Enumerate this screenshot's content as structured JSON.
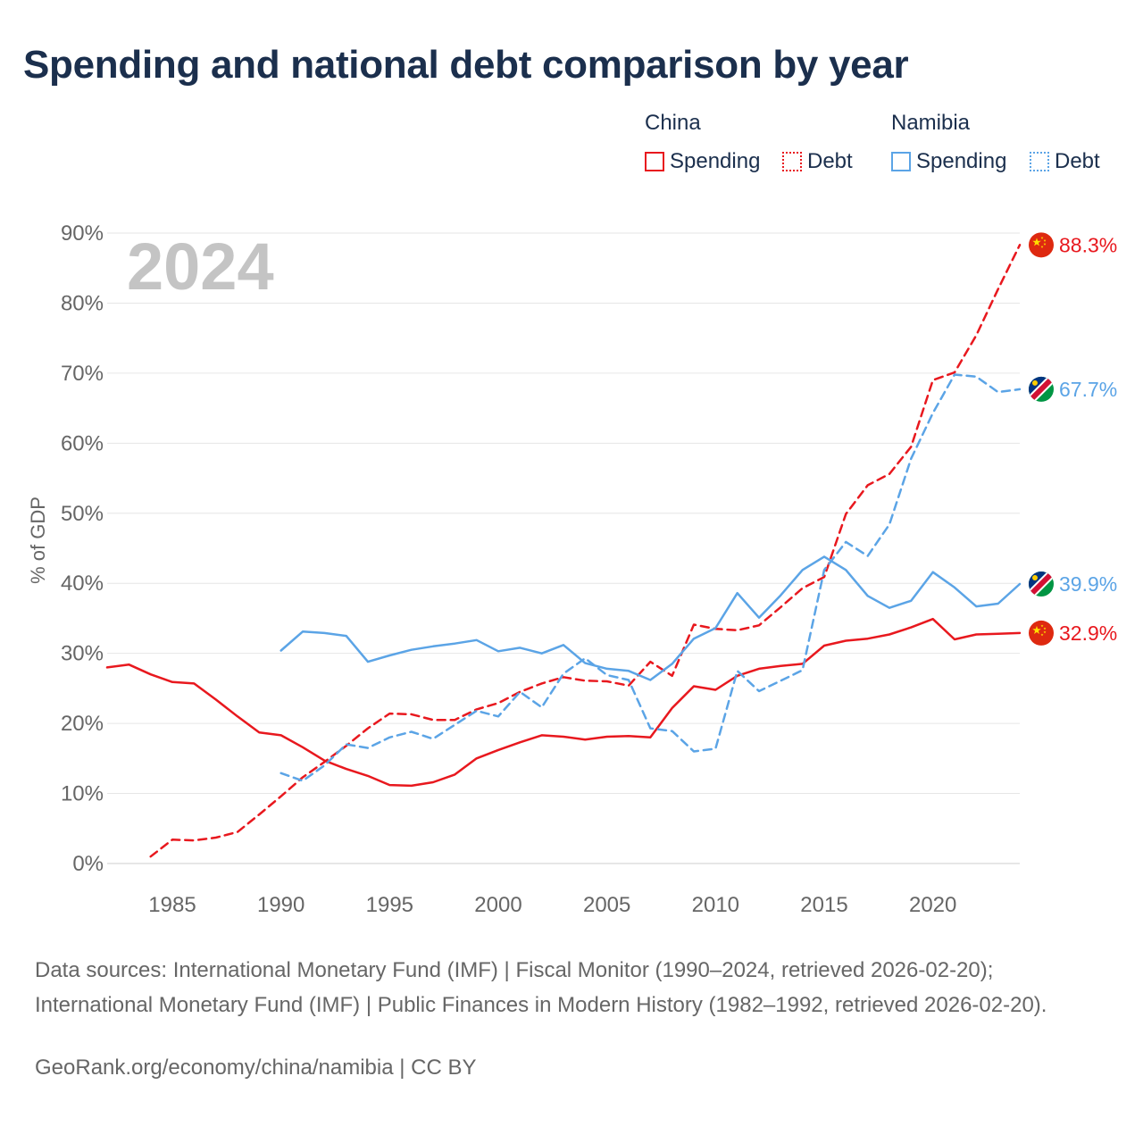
{
  "title": "Spending and national debt comparison by year",
  "legend": {
    "groups": [
      {
        "country": "China",
        "items": [
          {
            "label": "Spending",
            "color": "#e8181e",
            "style": "solid"
          },
          {
            "label": "Debt",
            "color": "#e8181e",
            "style": "dotted"
          }
        ]
      },
      {
        "country": "Namibia",
        "items": [
          {
            "label": "Spending",
            "color": "#5ba4e6",
            "style": "solid"
          },
          {
            "label": "Debt",
            "color": "#5ba4e6",
            "style": "dotted"
          }
        ]
      }
    ]
  },
  "footer": {
    "sources": "Data sources: International Monetary Fund (IMF) | Fiscal Monitor (1990–2024, retrieved 2026-02-20); International Monetary Fund (IMF) | Public Finances in Modern History (1982–1992, retrieved 2026-02-20).",
    "credit": "GeoRank.org/economy/china/namibia | CC BY"
  },
  "chart_data": {
    "type": "line",
    "year_label": "2024",
    "ylabel": "% of GDP",
    "ylim": [
      0,
      90
    ],
    "xlim": [
      1982,
      2024
    ],
    "y_ticks": [
      0,
      10,
      20,
      30,
      40,
      50,
      60,
      70,
      80,
      90
    ],
    "y_tick_labels": [
      "0%",
      "10%",
      "20%",
      "30%",
      "40%",
      "50%",
      "60%",
      "70%",
      "80%",
      "90%"
    ],
    "x_ticks": [
      1985,
      1990,
      1995,
      2000,
      2005,
      2010,
      2015,
      2020
    ],
    "x_tick_labels": [
      "1985",
      "1990",
      "1995",
      "2000",
      "2005",
      "2010",
      "2015",
      "2020"
    ],
    "series": [
      {
        "name": "China Spending",
        "country": "China",
        "measure": "Spending",
        "color": "#e8181e",
        "dash": "solid",
        "end_label": "32.9%",
        "flag": "china",
        "x": [
          1982,
          1983,
          1984,
          1985,
          1986,
          1987,
          1988,
          1989,
          1990,
          1991,
          1992,
          1993,
          1994,
          1995,
          1996,
          1997,
          1998,
          1999,
          2000,
          2001,
          2002,
          2003,
          2004,
          2005,
          2006,
          2007,
          2008,
          2009,
          2010,
          2011,
          2012,
          2013,
          2014,
          2015,
          2016,
          2017,
          2018,
          2019,
          2020,
          2021,
          2022,
          2023,
          2024
        ],
        "values": [
          28.0,
          28.4,
          27.0,
          25.9,
          25.7,
          23.4,
          21.0,
          18.7,
          18.3,
          16.6,
          14.7,
          13.5,
          12.5,
          11.2,
          11.1,
          11.6,
          12.7,
          15.0,
          16.2,
          17.3,
          18.3,
          18.1,
          17.7,
          18.1,
          18.2,
          18.0,
          22.2,
          25.3,
          24.8,
          26.8,
          27.8,
          28.2,
          28.5,
          31.1,
          31.8,
          32.1,
          32.7,
          33.7,
          34.9,
          32.0,
          32.7,
          32.8,
          32.9
        ]
      },
      {
        "name": "China Debt",
        "country": "China",
        "measure": "Debt",
        "color": "#e8181e",
        "dash": "dashed",
        "end_label": "88.3%",
        "flag": "china",
        "x": [
          1984,
          1985,
          1986,
          1987,
          1988,
          1989,
          1990,
          1991,
          1992,
          1993,
          1994,
          1995,
          1996,
          1997,
          1998,
          1999,
          2000,
          2001,
          2002,
          2003,
          2004,
          2005,
          2006,
          2007,
          2008,
          2009,
          2010,
          2011,
          2012,
          2013,
          2014,
          2015,
          2016,
          2017,
          2018,
          2019,
          2020,
          2021,
          2022,
          2023,
          2024
        ],
        "values": [
          1.0,
          3.4,
          3.3,
          3.7,
          4.5,
          7.0,
          9.6,
          12.3,
          14.5,
          16.8,
          19.3,
          21.4,
          21.3,
          20.5,
          20.5,
          22.0,
          22.9,
          24.5,
          25.7,
          26.6,
          26.1,
          26.0,
          25.4,
          28.8,
          26.8,
          34.1,
          33.5,
          33.3,
          34.0,
          36.6,
          39.3,
          40.9,
          49.9,
          54.0,
          55.6,
          59.5,
          69.0,
          70.1,
          75.4,
          82.0,
          88.3
        ]
      },
      {
        "name": "Namibia Spending",
        "country": "Namibia",
        "measure": "Spending",
        "color": "#5ba4e6",
        "dash": "solid",
        "end_label": "39.9%",
        "flag": "namibia",
        "x": [
          1990,
          1991,
          1992,
          1993,
          1994,
          1995,
          1996,
          1997,
          1998,
          1999,
          2000,
          2001,
          2002,
          2003,
          2004,
          2005,
          2006,
          2007,
          2008,
          2009,
          2010,
          2011,
          2012,
          2013,
          2014,
          2015,
          2016,
          2017,
          2018,
          2019,
          2020,
          2021,
          2022,
          2023,
          2024
        ],
        "values": [
          30.4,
          33.1,
          32.9,
          32.5,
          28.8,
          29.7,
          30.5,
          31.0,
          31.4,
          31.9,
          30.3,
          30.8,
          30.0,
          31.2,
          28.6,
          27.8,
          27.5,
          26.2,
          28.5,
          32.1,
          33.6,
          38.6,
          35.1,
          38.3,
          41.9,
          43.8,
          41.9,
          38.2,
          36.5,
          37.5,
          41.6,
          39.4,
          36.7,
          37.1,
          39.9
        ]
      },
      {
        "name": "Namibia Debt",
        "country": "Namibia",
        "measure": "Debt",
        "color": "#5ba4e6",
        "dash": "dashed",
        "end_label": "67.7%",
        "flag": "namibia",
        "x": [
          1990,
          1991,
          1992,
          1993,
          1994,
          1995,
          1996,
          1997,
          1998,
          1999,
          2000,
          2001,
          2002,
          2003,
          2004,
          2005,
          2006,
          2007,
          2008,
          2009,
          2010,
          2011,
          2012,
          2013,
          2014,
          2015,
          2016,
          2017,
          2018,
          2019,
          2020,
          2021,
          2022,
          2023,
          2024
        ],
        "values": [
          12.9,
          11.8,
          14.0,
          17.0,
          16.5,
          18.0,
          18.8,
          17.8,
          19.8,
          21.8,
          21.0,
          24.5,
          22.3,
          27.1,
          29.3,
          26.9,
          26.2,
          19.3,
          18.9,
          16.0,
          16.4,
          27.5,
          24.6,
          26.1,
          27.6,
          41.9,
          45.9,
          43.9,
          48.4,
          57.8,
          64.3,
          69.8,
          69.5,
          67.3,
          67.7
        ]
      }
    ]
  }
}
